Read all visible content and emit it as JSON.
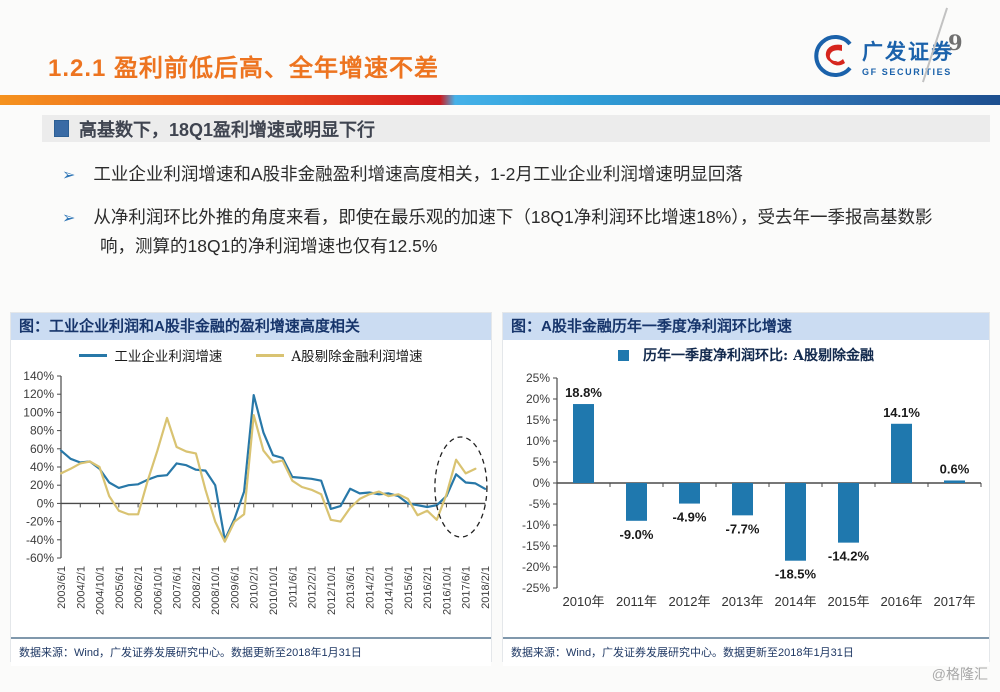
{
  "page": {
    "number": "9",
    "watermark": "@格隆汇"
  },
  "header": {
    "title": "1.2.1 盈利前低后高、全年增速不差",
    "logo_cn": "广发证券",
    "logo_en": "GF SECURITIES"
  },
  "section": {
    "heading": "高基数下，18Q1盈利增速或明显下行",
    "bullets": [
      "工业企业利润增速和A股非金融盈利增速高度相关，1-2月工业企业利润增速明显回落",
      "从净利润环比外推的角度来看，即使在最乐观的加速下（18Q1净利润环比增速18%），受去年一季报高基数影响，测算的18Q1的净利润增速也仅有12.5%"
    ]
  },
  "left_chart": {
    "title": "图：工业企业利润和A股非金融的盈利增速高度相关",
    "source": "数据来源：Wind，广发证券发展研究中心。数据更新至2018年1月31日"
  },
  "right_chart": {
    "title": "图：A股非金融历年一季度净利润环比增速",
    "source": "数据来源：Wind，广发证券发展研究中心。数据更新至2018年1月31日"
  },
  "colors": {
    "accent_orange": "#ed7420",
    "brand_blue": "#1b62ab",
    "heading_square": "#3a6ba5",
    "chart_title_bg": "#cbdcf2",
    "chart_title_text": "#17356b",
    "line_blue": "#2878a8",
    "line_gold": "#d9c372",
    "bar_blue": "#1f78ae",
    "source_text": "#1f3864"
  },
  "chart_data": [
    {
      "type": "line",
      "title": "图：工业企业利润和A股非金融的盈利增速高度相关",
      "ylim": [
        -60,
        140
      ],
      "y_tick_step": 20,
      "y_tick_format": "percent",
      "grid": false,
      "legend_position": "top",
      "x_tick_labels": [
        "2003/6/1",
        "2004/2/1",
        "2004/10/1",
        "2005/6/1",
        "2006/2/1",
        "2006/10/1",
        "2007/6/1",
        "2008/2/1",
        "2008/10/1",
        "2009/6/1",
        "2010/2/1",
        "2010/10/1",
        "2011/6/1",
        "2012/2/1",
        "2012/10/1",
        "2013/6/1",
        "2014/2/1",
        "2014/10/1",
        "2015/6/1",
        "2016/2/1",
        "2016/10/1",
        "2017/6/1",
        "2018/2/1"
      ],
      "series": [
        {
          "name": "工业企业利润增速",
          "color": "#2878a8",
          "values": [
            58,
            49,
            45,
            46,
            38,
            23,
            17,
            20,
            21,
            26,
            30,
            31,
            44,
            42,
            37,
            36,
            20,
            -40,
            -17,
            13,
            119,
            78,
            53,
            50,
            29,
            28,
            27,
            25,
            -6,
            -3,
            16,
            11,
            12,
            10,
            11,
            8,
            0,
            -2,
            -4,
            -2,
            8,
            32,
            23,
            22,
            16
          ]
        },
        {
          "name": "A股剔除金融利润增速",
          "color": "#d9c372",
          "values": [
            33,
            38,
            44,
            46,
            40,
            8,
            -8,
            -12,
            -12,
            25,
            58,
            94,
            62,
            57,
            55,
            15,
            -20,
            -42,
            -20,
            -12,
            97,
            58,
            45,
            47,
            25,
            18,
            15,
            10,
            -18,
            -20,
            -5,
            5,
            10,
            13,
            8,
            10,
            5,
            -13,
            -8,
            -18,
            10,
            48,
            33,
            38,
            null
          ]
        }
      ],
      "highlight": {
        "shape": "dashed-ellipse",
        "center_index": 41.5,
        "center_value": 18,
        "rx_index_span": 2.7,
        "ry_value_span": 55
      }
    },
    {
      "type": "bar",
      "title": "图：A股非金融历年一季度净利润环比增速",
      "legend": "历年一季度净利润环比: A股剔除金融",
      "categories": [
        "2010年",
        "2011年",
        "2012年",
        "2013年",
        "2014年",
        "2015年",
        "2016年",
        "2017年"
      ],
      "values": [
        18.8,
        -9.0,
        -4.9,
        -7.7,
        -18.5,
        -14.2,
        14.1,
        0.6
      ],
      "labels": [
        "18.8%",
        "-9.0%",
        "-4.9%",
        "-7.7%",
        "-18.5%",
        "-14.2%",
        "14.1%",
        "0.6%"
      ],
      "ylim": [
        -25,
        25
      ],
      "y_tick_step": 5,
      "y_tick_format": "percent",
      "bar_color": "#1f78ae",
      "grid": false
    }
  ]
}
